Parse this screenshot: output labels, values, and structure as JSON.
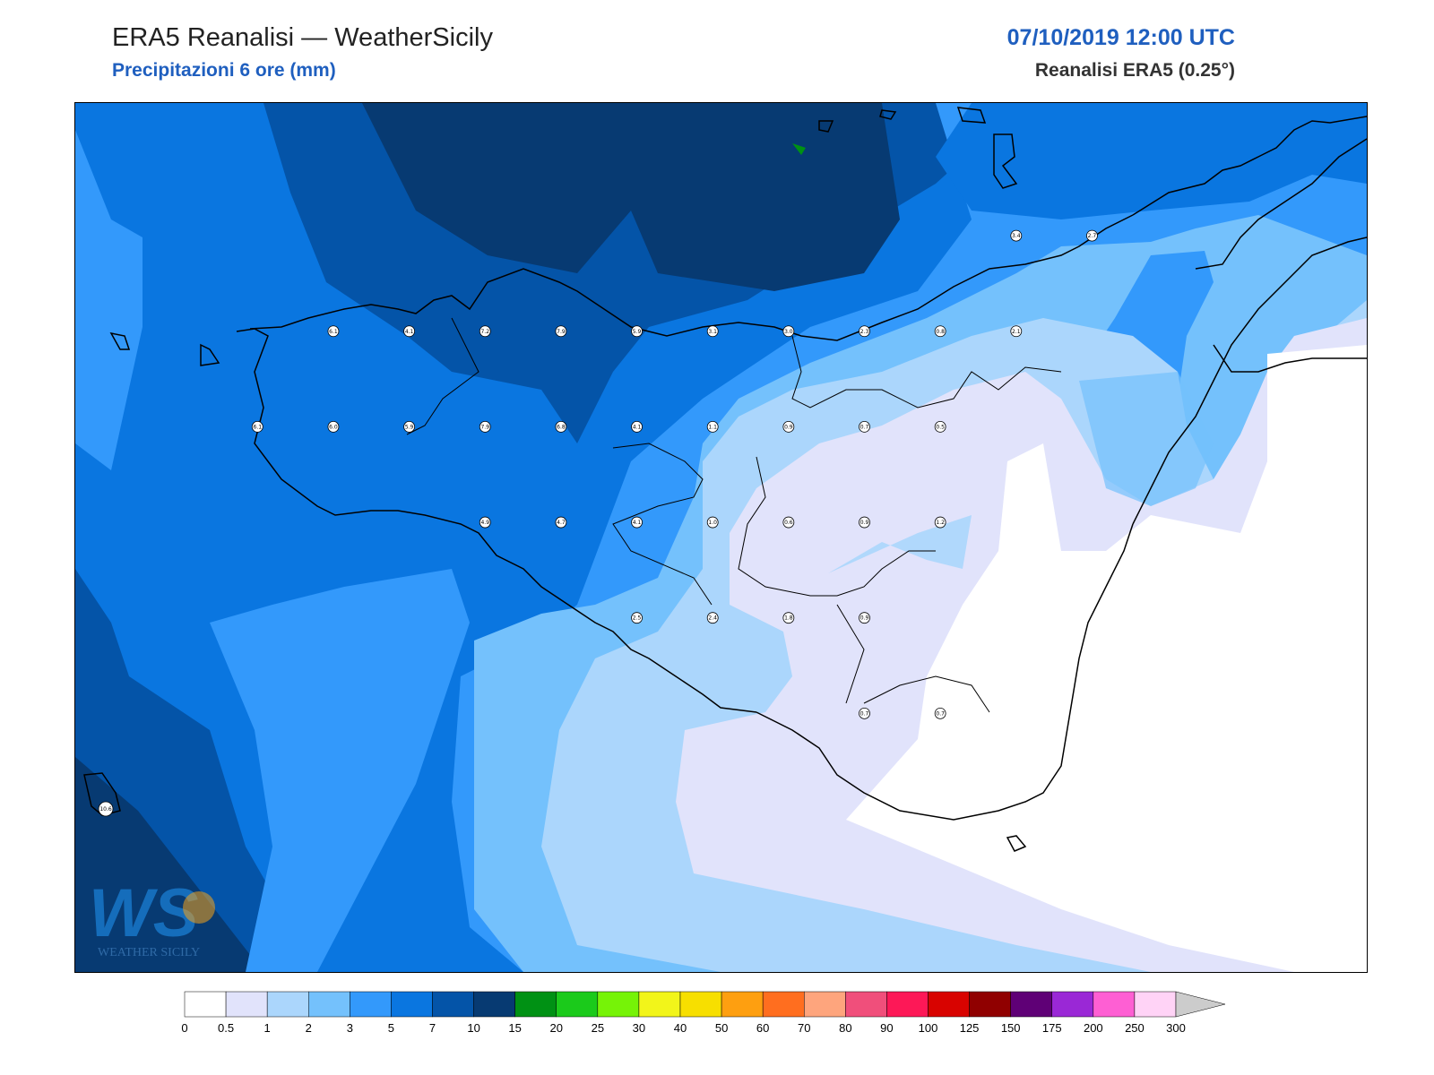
{
  "header": {
    "title": "ERA5 Reanalisi — WeatherSicily",
    "subtitle": "Precipitazioni 6 ore (mm)",
    "datetime": "07/10/2019 12:00 UTC",
    "source": "Reanalisi ERA5 (0.25°)"
  },
  "logo": {
    "letters": "WS",
    "name": "WEATHER SICILY"
  },
  "stations": [
    {
      "lon": 12.5,
      "lat": 38.0,
      "value": "6.1"
    },
    {
      "lon": 13.0,
      "lat": 38.0,
      "value": "4.1"
    },
    {
      "lon": 13.5,
      "lat": 38.0,
      "value": "7.2"
    },
    {
      "lon": 14.0,
      "lat": 38.0,
      "value": "7.9"
    },
    {
      "lon": 14.5,
      "lat": 38.0,
      "value": "5.9"
    },
    {
      "lon": 15.0,
      "lat": 38.0,
      "value": "3.1"
    },
    {
      "lon": 15.5,
      "lat": 38.0,
      "value": "3.0"
    },
    {
      "lon": 16.0,
      "lat": 38.0,
      "value": "2.3"
    },
    {
      "lon": 16.5,
      "lat": 38.0,
      "value": "0.8"
    },
    {
      "lon": 17.0,
      "lat": 38.0,
      "value": "2.1"
    },
    {
      "lon": 17.0,
      "lat": 38.5,
      "value": "3.4"
    },
    {
      "lon": 17.5,
      "lat": 38.5,
      "value": "2.7"
    },
    {
      "lon": 12.0,
      "lat": 37.5,
      "value": "6.1"
    },
    {
      "lon": 12.5,
      "lat": 37.5,
      "value": "6.0"
    },
    {
      "lon": 13.0,
      "lat": 37.5,
      "value": "5.9"
    },
    {
      "lon": 13.5,
      "lat": 37.5,
      "value": "7.9"
    },
    {
      "lon": 14.0,
      "lat": 37.5,
      "value": "6.8"
    },
    {
      "lon": 14.5,
      "lat": 37.5,
      "value": "4.1"
    },
    {
      "lon": 15.0,
      "lat": 37.5,
      "value": "1.1"
    },
    {
      "lon": 15.5,
      "lat": 37.5,
      "value": "0.9"
    },
    {
      "lon": 16.0,
      "lat": 37.5,
      "value": "0.7"
    },
    {
      "lon": 16.5,
      "lat": 37.5,
      "value": "0.5"
    },
    {
      "lon": 13.5,
      "lat": 37.0,
      "value": "4.9"
    },
    {
      "lon": 14.0,
      "lat": 37.0,
      "value": "4.7"
    },
    {
      "lon": 14.5,
      "lat": 37.0,
      "value": "4.1"
    },
    {
      "lon": 15.0,
      "lat": 37.0,
      "value": "1.0"
    },
    {
      "lon": 15.5,
      "lat": 37.0,
      "value": "0.6"
    },
    {
      "lon": 16.0,
      "lat": 37.0,
      "value": "0.9"
    },
    {
      "lon": 16.5,
      "lat": 37.0,
      "value": "1.2"
    },
    {
      "lon": 14.5,
      "lat": 36.5,
      "value": "2.5"
    },
    {
      "lon": 15.0,
      "lat": 36.5,
      "value": "2.4"
    },
    {
      "lon": 15.5,
      "lat": 36.5,
      "value": "1.8"
    },
    {
      "lon": 16.0,
      "lat": 36.5,
      "value": "0.9"
    },
    {
      "lon": 16.0,
      "lat": 36.0,
      "value": "0.7"
    },
    {
      "lon": 16.5,
      "lat": 36.0,
      "value": "0.7"
    },
    {
      "lon": 11.0,
      "lat": 35.5,
      "value": "10.6"
    }
  ],
  "colorbar": {
    "labels": [
      "0",
      "0.5",
      "1",
      "2",
      "3",
      "5",
      "7",
      "10",
      "15",
      "20",
      "25",
      "30",
      "40",
      "50",
      "60",
      "70",
      "80",
      "90",
      "100",
      "125",
      "150",
      "175",
      "200",
      "250",
      "300"
    ],
    "colors": [
      "#ffffff",
      "#e1e3fb",
      "#abd6fc",
      "#74c1fc",
      "#3399fb",
      "#0a76e0",
      "#0454a8",
      "#073a72",
      "#009114",
      "#1bca1b",
      "#76f307",
      "#f2f51a",
      "#f7df00",
      "#fe9f10",
      "#ff6e1f",
      "#fea57d",
      "#f04f7b",
      "#fd1857",
      "#d80300",
      "#900000",
      "#5f0076",
      "#9a28d6",
      "#fe5fd3",
      "#ffd3f6"
    ],
    "extend_color": "#cccccc"
  },
  "precip_fields": {
    "colors": {
      "c0": "#ffffff",
      "c05": "#e1e3fb",
      "c1": "#abd6fc",
      "c2": "#74c1fc",
      "c3": "#3399fb",
      "c5": "#0a76e0",
      "c7": "#0454a8",
      "c10": "#073a72",
      "c15": "#009114"
    }
  }
}
